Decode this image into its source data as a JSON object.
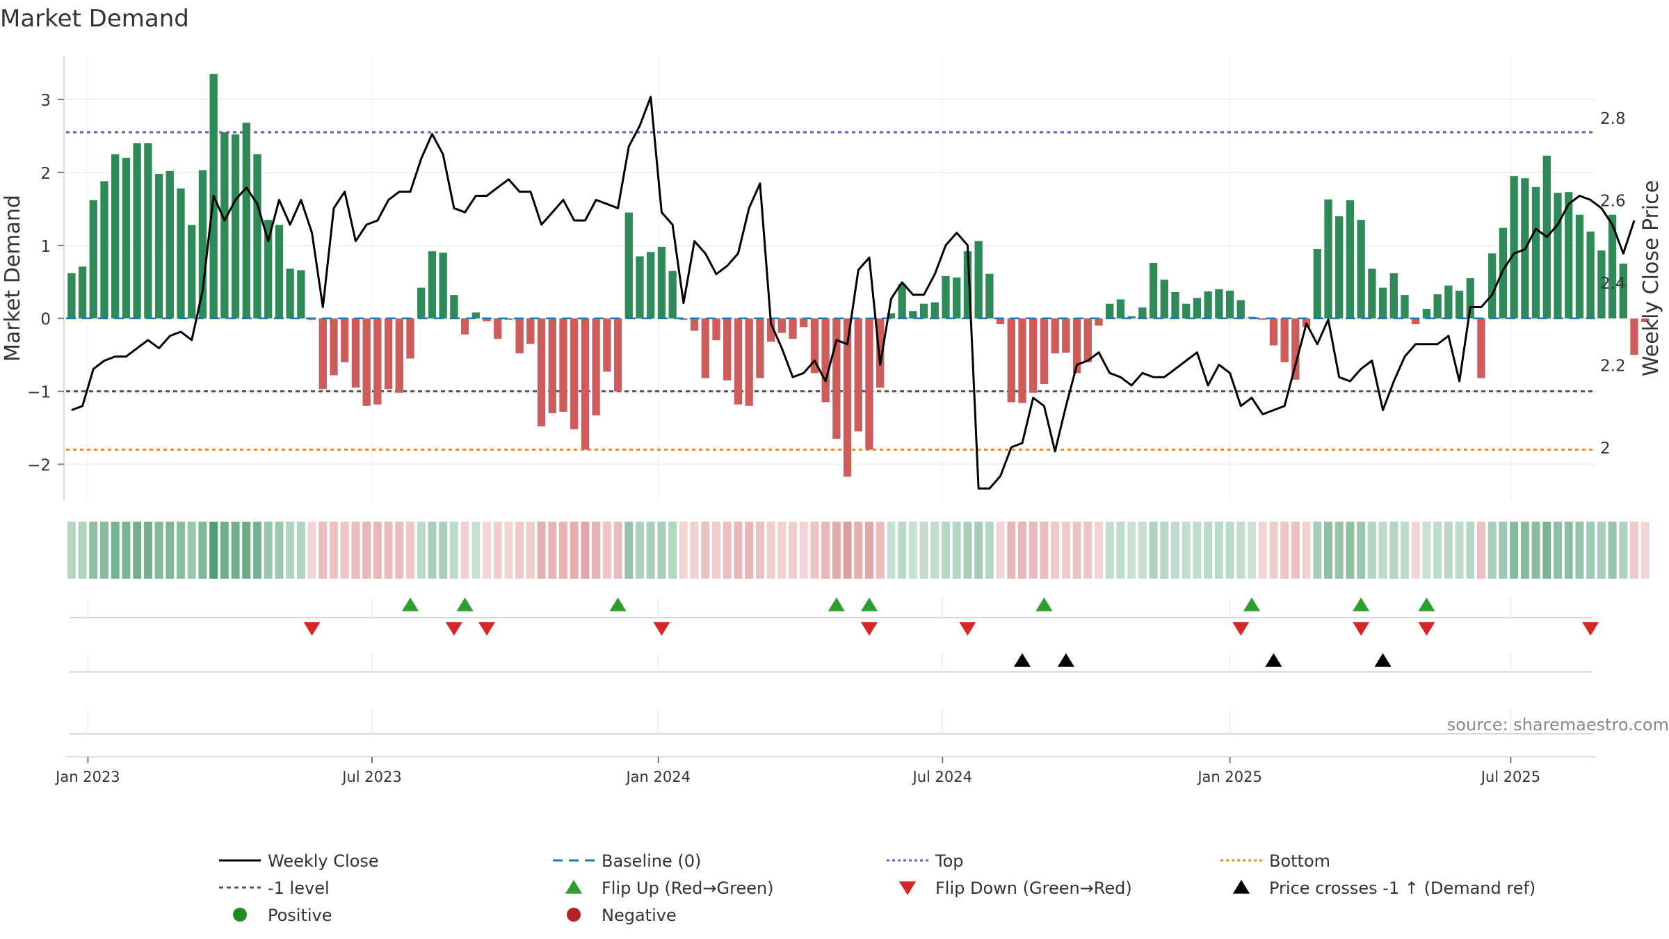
{
  "chart_data": {
    "type": "bar",
    "title": "Market Demand",
    "ylabel": "Market Demand",
    "y2label": "Weekly Close Price",
    "ylim": [
      -2.5,
      3.6
    ],
    "y2lim": [
      1.87,
      2.95
    ],
    "yticks": [
      3,
      2,
      1,
      0,
      -1,
      -2
    ],
    "ytick_labels": [
      "3",
      "2",
      "1",
      "0",
      "−1",
      "−2"
    ],
    "y2ticks": [
      2.8,
      2.6,
      2.4,
      2.2,
      2.0
    ],
    "y2tick_labels": [
      "2.8",
      "2.6",
      "2.4",
      "2.2",
      "2"
    ],
    "x_start": 0,
    "x_end": 140,
    "xticks": [
      {
        "pos": 2,
        "label": "Jan 2023"
      },
      {
        "pos": 28,
        "label": "Jul 2023"
      },
      {
        "pos": 54.2,
        "label": "Jan 2024"
      },
      {
        "pos": 80.2,
        "label": "Jul 2024"
      },
      {
        "pos": 106.5,
        "label": "Jan 2025"
      },
      {
        "pos": 132.2,
        "label": "Jul 2025"
      }
    ],
    "levels": {
      "top": 2.55,
      "bottom": -1.8,
      "minus_one": -1,
      "baseline": 0
    },
    "colors": {
      "positive": "#2e8b57",
      "negative": "#cd5c5c",
      "price": "#000000",
      "baseline": "#1f77b4",
      "top": "#6a5acd",
      "bottom": "#ff8c00",
      "minus_one": "#555555",
      "flip_up": "#2ca02c",
      "flip_down": "#d62728",
      "cross": "#000000",
      "positive_dot": "#228b22",
      "negative_dot": "#b22222"
    },
    "series": [
      {
        "name": "Market Demand",
        "type": "bar",
        "values": [
          0.62,
          0.71,
          1.62,
          1.88,
          2.25,
          2.2,
          2.4,
          2.4,
          1.98,
          2.02,
          1.78,
          1.28,
          2.03,
          3.35,
          2.55,
          2.52,
          2.68,
          2.25,
          1.35,
          1.28,
          0.68,
          0.66,
          -0.02,
          -0.97,
          -0.78,
          -0.6,
          -0.95,
          -1.2,
          -1.18,
          -0.97,
          -1.02,
          -0.55,
          0.42,
          0.92,
          0.9,
          0.32,
          -0.22,
          0.08,
          -0.04,
          -0.28,
          -0.02,
          -0.48,
          -0.35,
          -1.48,
          -1.3,
          -1.28,
          -1.52,
          -1.8,
          -1.33,
          -0.73,
          -1.0,
          1.45,
          0.85,
          0.91,
          0.98,
          0.65,
          -0.02,
          -0.17,
          -0.82,
          -0.3,
          -0.85,
          -1.18,
          -1.2,
          -0.82,
          -0.32,
          -0.2,
          -0.28,
          -0.12,
          -0.75,
          -1.15,
          -1.65,
          -2.17,
          -1.55,
          -1.8,
          -0.95,
          0.07,
          0.47,
          0.1,
          0.2,
          0.22,
          0.58,
          0.56,
          0.92,
          1.06,
          0.61,
          -0.08,
          -1.15,
          -1.16,
          -1.02,
          -0.9,
          -0.48,
          -0.47,
          -0.75,
          -0.6,
          -0.1,
          0.2,
          0.26,
          0.03,
          0.15,
          0.76,
          0.53,
          0.36,
          0.2,
          0.28,
          0.37,
          0.4,
          0.38,
          0.25,
          0.02,
          -0.02,
          -0.37,
          -0.6,
          -0.84,
          -0.12,
          0.95,
          1.63,
          1.4,
          1.62,
          1.35,
          0.68,
          0.42,
          0.62,
          0.32,
          -0.08,
          0.13,
          0.33,
          0.45,
          0.38,
          0.55,
          -0.82,
          0.89,
          1.24,
          1.95,
          1.92,
          1.8,
          2.23,
          1.72,
          1.73,
          1.42,
          1.19,
          0.93,
          1.42,
          0.75,
          -0.5,
          -0.05
        ]
      },
      {
        "name": "Weekly Close",
        "type": "line",
        "axis": "y2",
        "values": [
          2.09,
          2.1,
          2.19,
          2.21,
          2.22,
          2.22,
          2.24,
          2.26,
          2.24,
          2.27,
          2.28,
          2.26,
          2.38,
          2.61,
          2.55,
          2.6,
          2.63,
          2.59,
          2.5,
          2.6,
          2.54,
          2.6,
          2.52,
          2.34,
          2.58,
          2.62,
          2.5,
          2.54,
          2.55,
          2.6,
          2.62,
          2.62,
          2.7,
          2.76,
          2.71,
          2.58,
          2.57,
          2.61,
          2.61,
          2.63,
          2.65,
          2.62,
          2.62,
          2.54,
          2.57,
          2.6,
          2.55,
          2.55,
          2.6,
          2.59,
          2.58,
          2.73,
          2.78,
          2.85,
          2.57,
          2.54,
          2.35,
          2.5,
          2.47,
          2.42,
          2.44,
          2.47,
          2.58,
          2.64,
          2.3,
          2.24,
          2.17,
          2.18,
          2.21,
          2.16,
          2.26,
          2.25,
          2.43,
          2.46,
          2.2,
          2.36,
          2.4,
          2.37,
          2.37,
          2.42,
          2.49,
          2.52,
          2.49,
          1.9,
          1.9,
          1.93,
          2.0,
          2.01,
          2.12,
          2.1,
          1.99,
          2.1,
          2.2,
          2.21,
          2.23,
          2.18,
          2.17,
          2.15,
          2.18,
          2.17,
          2.17,
          2.19,
          2.21,
          2.23,
          2.15,
          2.2,
          2.18,
          2.1,
          2.12,
          2.08,
          2.09,
          2.1,
          2.2,
          2.3,
          2.25,
          2.31,
          2.17,
          2.16,
          2.19,
          2.21,
          2.09,
          2.16,
          2.22,
          2.25,
          2.25,
          2.25,
          2.27,
          2.16,
          2.34,
          2.34,
          2.37,
          2.43,
          2.47,
          2.48,
          2.53,
          2.51,
          2.54,
          2.59,
          2.61,
          2.6,
          2.58,
          2.54,
          2.47,
          2.55
        ]
      }
    ],
    "flip_up": [
      31,
      36,
      50,
      70,
      73,
      89,
      108,
      118,
      124
    ],
    "flip_down": [
      22,
      35,
      38,
      54,
      73,
      82,
      107,
      118,
      124,
      139
    ],
    "price_crosses": [
      87,
      91,
      110,
      120
    ],
    "legend": [
      {
        "label": "Weekly Close",
        "marker": "solid-line"
      },
      {
        "label": "Baseline (0)",
        "marker": "dash-line"
      },
      {
        "label": "Top",
        "marker": "dot-line"
      },
      {
        "label": "Bottom",
        "marker": "dot-line"
      },
      {
        "label": "-1 level",
        "marker": "dash-line"
      },
      {
        "label": "Flip Up (Red→Green)",
        "marker": "up-triangle"
      },
      {
        "label": "Flip Down (Green→Red)",
        "marker": "down-triangle"
      },
      {
        "label": "Price crosses -1 ↑ (Demand ref)",
        "marker": "up-triangle"
      },
      {
        "label": "Positive",
        "marker": "circle"
      },
      {
        "label": "Negative",
        "marker": "circle"
      }
    ],
    "source": "source: sharemaestro.com"
  }
}
